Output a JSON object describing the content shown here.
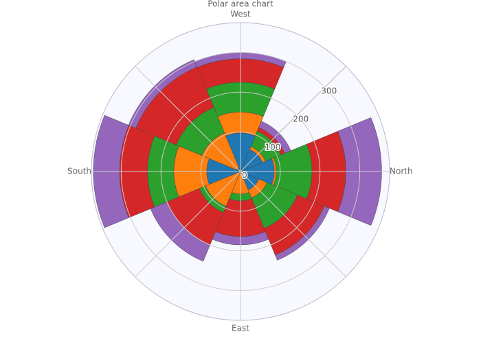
{
  "chart_data": {
    "type": "barpolar",
    "title": "Polar area chart",
    "categories": [
      "North",
      null,
      "West",
      null,
      "South",
      null,
      "East",
      null
    ],
    "series": [
      {
        "color": "#1f77b4",
        "values": [
          85,
          60,
          97,
          10,
          85,
          5,
          5,
          50
        ]
      },
      {
        "color": "#ff7f0e",
        "values": [
          5,
          8,
          53,
          95,
          83,
          90,
          52,
          22
        ]
      },
      {
        "color": "#2ca02c",
        "values": [
          90,
          42,
          75,
          70,
          66,
          17,
          17,
          83
        ]
      },
      {
        "color": "#d62728",
        "values": [
          85,
          10,
          59,
          110,
          70,
          88,
          90,
          73
        ]
      },
      {
        "color": "#9467bd",
        "values": [
          90,
          17,
          16,
          20,
          66,
          45,
          21,
          14
        ]
      }
    ],
    "ylim": [
      0,
      375
    ],
    "yticks": [
      0,
      100,
      200,
      300
    ],
    "grid": true
  }
}
